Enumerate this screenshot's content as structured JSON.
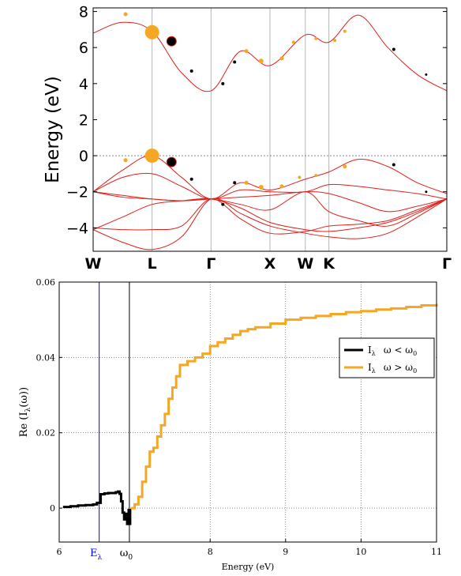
{
  "chart_data": [
    {
      "type": "line",
      "ylabel": "Energy (eV)",
      "ylim": [
        -5.3,
        8.2
      ],
      "yticks": [
        -4,
        -2,
        0,
        2,
        4,
        6,
        8
      ],
      "x_path": [
        0,
        1,
        2,
        3,
        4,
        5,
        6
      ],
      "kpoints": [
        {
          "label": "W",
          "x": 0
        },
        {
          "label": "L",
          "x": 1
        },
        {
          "label": "Γ",
          "x": 2
        },
        {
          "label": "X",
          "x": 3
        },
        {
          "label": "W",
          "x": 3.6
        },
        {
          "label": "K",
          "x": 4
        },
        {
          "label": "Γ",
          "x": 6
        }
      ],
      "xlim": [
        0,
        6
      ],
      "reference_line_y": 0,
      "bands": [
        {
          "x": [
            0,
            0.5,
            1,
            1.5,
            2,
            2.5,
            3,
            3.6,
            4,
            4.5,
            5,
            5.5,
            6
          ],
          "y": [
            6.8,
            7.4,
            6.9,
            4.6,
            3.6,
            5.8,
            5.0,
            6.7,
            6.3,
            7.8,
            6.0,
            4.5,
            3.6
          ]
        },
        {
          "x": [
            0,
            0.5,
            1,
            1.5,
            2,
            2.5,
            3,
            3.6,
            4,
            4.5,
            5,
            5.5,
            6
          ],
          "y": [
            -2.0,
            -0.8,
            0.0,
            -1.2,
            -2.4,
            -1.5,
            -1.9,
            -1.3,
            -0.9,
            -0.2,
            -0.6,
            -1.5,
            -2.1
          ]
        },
        {
          "x": [
            0,
            0.5,
            1,
            1.5,
            2,
            2.5,
            3,
            3.6,
            4,
            4.5,
            5,
            5.5,
            6
          ],
          "y": [
            -2.0,
            -1.2,
            -1.0,
            -1.7,
            -2.4,
            -1.9,
            -2.0,
            -2.0,
            -1.6,
            -1.7,
            -1.9,
            -2.1,
            -2.4
          ]
        },
        {
          "x": [
            0,
            0.5,
            1,
            1.5,
            2,
            2.5,
            3,
            3.6,
            4,
            4.5,
            5,
            5.5,
            6
          ],
          "y": [
            -2.0,
            -2.3,
            -2.4,
            -2.5,
            -2.4,
            -2.3,
            -2.2,
            -2.0,
            -2.1,
            -2.6,
            -3.1,
            -2.8,
            -2.4
          ]
        },
        {
          "x": [
            0,
            0.5,
            1,
            1.5,
            2,
            2.5,
            3,
            3.6,
            4,
            4.5,
            5,
            5.5,
            6
          ],
          "y": [
            -2.0,
            -2.2,
            -2.4,
            -2.5,
            -2.4,
            -2.7,
            -3.0,
            -2.0,
            -3.1,
            -3.6,
            -3.9,
            -3.2,
            -2.4
          ]
        },
        {
          "x": [
            0,
            0.5,
            1,
            1.5,
            2,
            2.5,
            3,
            3.6,
            4,
            4.5,
            5,
            5.5,
            6
          ],
          "y": [
            -4.1,
            -3.4,
            -2.7,
            -2.5,
            -2.4,
            -2.9,
            -3.7,
            -4.1,
            -4.2,
            -4.0,
            -3.7,
            -3.1,
            -2.4
          ]
        },
        {
          "x": [
            0,
            0.5,
            1,
            1.5,
            2,
            2.5,
            3,
            3.6,
            4,
            4.5,
            5,
            5.5,
            6
          ],
          "y": [
            -4.1,
            -4.8,
            -5.2,
            -4.5,
            -2.4,
            -3.2,
            -3.9,
            -4.3,
            -4.5,
            -4.6,
            -4.3,
            -3.4,
            -2.4
          ]
        },
        {
          "x": [
            0,
            0.5,
            1,
            1.5,
            2,
            2.5,
            3,
            3.6,
            4,
            4.5,
            5,
            5.5,
            6
          ],
          "y": [
            -4.0,
            -4.1,
            -4.1,
            -3.9,
            -2.4,
            -3.5,
            -4.3,
            -4.2,
            -3.9,
            -3.8,
            -3.6,
            -3.0,
            -2.4
          ]
        }
      ],
      "markers": [
        {
          "x": 0.55,
          "y": 7.85,
          "color": "#f5a623",
          "size": 2.5
        },
        {
          "x": 1.0,
          "y": 6.85,
          "color": "#f5a623",
          "size": 9
        },
        {
          "x": 1.33,
          "y": 6.35,
          "color": "#000000",
          "size": 6
        },
        {
          "x": 1.67,
          "y": 4.7,
          "color": "#000000",
          "size": 2
        },
        {
          "x": 2.2,
          "y": 4.0,
          "color": "#000000",
          "size": 2
        },
        {
          "x": 2.4,
          "y": 5.2,
          "color": "#000000",
          "size": 2
        },
        {
          "x": 2.6,
          "y": 5.8,
          "color": "#f5a623",
          "size": 2.5
        },
        {
          "x": 2.85,
          "y": 5.25,
          "color": "#f5a623",
          "size": 3
        },
        {
          "x": 3.2,
          "y": 5.4,
          "color": "#f5a623",
          "size": 2.5
        },
        {
          "x": 3.4,
          "y": 6.3,
          "color": "#f5a623",
          "size": 2
        },
        {
          "x": 3.78,
          "y": 6.5,
          "color": "#f5a623",
          "size": 2
        },
        {
          "x": 4.1,
          "y": 6.4,
          "color": "#f5a623",
          "size": 2
        },
        {
          "x": 4.27,
          "y": 6.9,
          "color": "#f5a623",
          "size": 2
        },
        {
          "x": 5.1,
          "y": 5.9,
          "color": "#000000",
          "size": 2
        },
        {
          "x": 5.65,
          "y": 4.5,
          "color": "#000000",
          "size": 1.5
        },
        {
          "x": 0.55,
          "y": -0.25,
          "color": "#f5a623",
          "size": 2.5
        },
        {
          "x": 1.0,
          "y": 0.0,
          "color": "#f5a623",
          "size": 9
        },
        {
          "x": 1.33,
          "y": -0.35,
          "color": "#000000",
          "size": 6
        },
        {
          "x": 1.67,
          "y": -1.3,
          "color": "#000000",
          "size": 2
        },
        {
          "x": 2.2,
          "y": -2.7,
          "color": "#000000",
          "size": 2
        },
        {
          "x": 2.4,
          "y": -1.5,
          "color": "#000000",
          "size": 2
        },
        {
          "x": 2.6,
          "y": -1.5,
          "color": "#f5a623",
          "size": 2.5
        },
        {
          "x": 2.85,
          "y": -1.75,
          "color": "#f5a623",
          "size": 3
        },
        {
          "x": 3.2,
          "y": -1.7,
          "color": "#f5a623",
          "size": 2.5
        },
        {
          "x": 3.5,
          "y": -1.2,
          "color": "#f5a623",
          "size": 2
        },
        {
          "x": 3.78,
          "y": -1.1,
          "color": "#f5a623",
          "size": 2
        },
        {
          "x": 4.27,
          "y": -0.6,
          "color": "#f5a623",
          "size": 2.5
        },
        {
          "x": 5.1,
          "y": -0.5,
          "color": "#000000",
          "size": 2
        },
        {
          "x": 5.65,
          "y": -2.0,
          "color": "#000000",
          "size": 1.5
        }
      ]
    },
    {
      "type": "line",
      "xlabel": "Energy (eV)",
      "ylabel": "Re (I",
      "ylabel_sub": "λ",
      "ylabel_tail": "(ω))",
      "xlim": [
        6,
        11
      ],
      "ylim": [
        -0.009,
        0.06
      ],
      "xticks": [
        6,
        8,
        9,
        10,
        11
      ],
      "yticks": [
        0,
        0.02,
        0.04,
        0.06
      ],
      "ytick_labels": [
        "0",
        "0.02",
        "0.04",
        "0.06"
      ],
      "vlines": [
        {
          "x": 6.53,
          "color": "#0000ff",
          "label": "E",
          "sub": "λ"
        },
        {
          "x": 6.93,
          "color": "#000000",
          "label": "ω",
          "sub": "0"
        }
      ],
      "legend_position": "right",
      "series": [
        {
          "name": "I",
          "name_sub": "λ",
          "condition": "ω < ω",
          "condition_sub": "0",
          "color": "#000000",
          "x": [
            6.05,
            6.15,
            6.25,
            6.35,
            6.45,
            6.5,
            6.55,
            6.6,
            6.65,
            6.7,
            6.75,
            6.78,
            6.8,
            6.82,
            6.84,
            6.86,
            6.88,
            6.9,
            6.92,
            6.94
          ],
          "y": [
            0.0003,
            0.0005,
            0.0007,
            0.0008,
            0.001,
            0.0014,
            0.0037,
            0.0039,
            0.004,
            0.004,
            0.0042,
            0.0044,
            0.0038,
            0.0018,
            -0.0012,
            -0.003,
            -0.0015,
            -0.0042,
            -0.0005,
            -0.0045
          ]
        },
        {
          "name": "I",
          "name_sub": "λ",
          "condition": "ω > ω",
          "condition_sub": "0",
          "color": "#f5a623",
          "x": [
            6.95,
            7.0,
            7.05,
            7.1,
            7.15,
            7.2,
            7.25,
            7.3,
            7.35,
            7.4,
            7.45,
            7.5,
            7.55,
            7.6,
            7.7,
            7.8,
            7.9,
            8.0,
            8.1,
            8.2,
            8.3,
            8.4,
            8.5,
            8.6,
            8.8,
            9.0,
            9.2,
            9.4,
            9.6,
            9.8,
            10.0,
            10.2,
            10.4,
            10.6,
            10.8,
            11.0
          ],
          "y": [
            0.0,
            0.001,
            0.003,
            0.007,
            0.011,
            0.015,
            0.016,
            0.019,
            0.022,
            0.025,
            0.029,
            0.032,
            0.035,
            0.038,
            0.039,
            0.04,
            0.041,
            0.043,
            0.044,
            0.045,
            0.046,
            0.047,
            0.0475,
            0.048,
            0.049,
            0.05,
            0.0505,
            0.051,
            0.0515,
            0.052,
            0.0523,
            0.0527,
            0.053,
            0.0534,
            0.0538,
            0.0542
          ]
        }
      ]
    }
  ]
}
